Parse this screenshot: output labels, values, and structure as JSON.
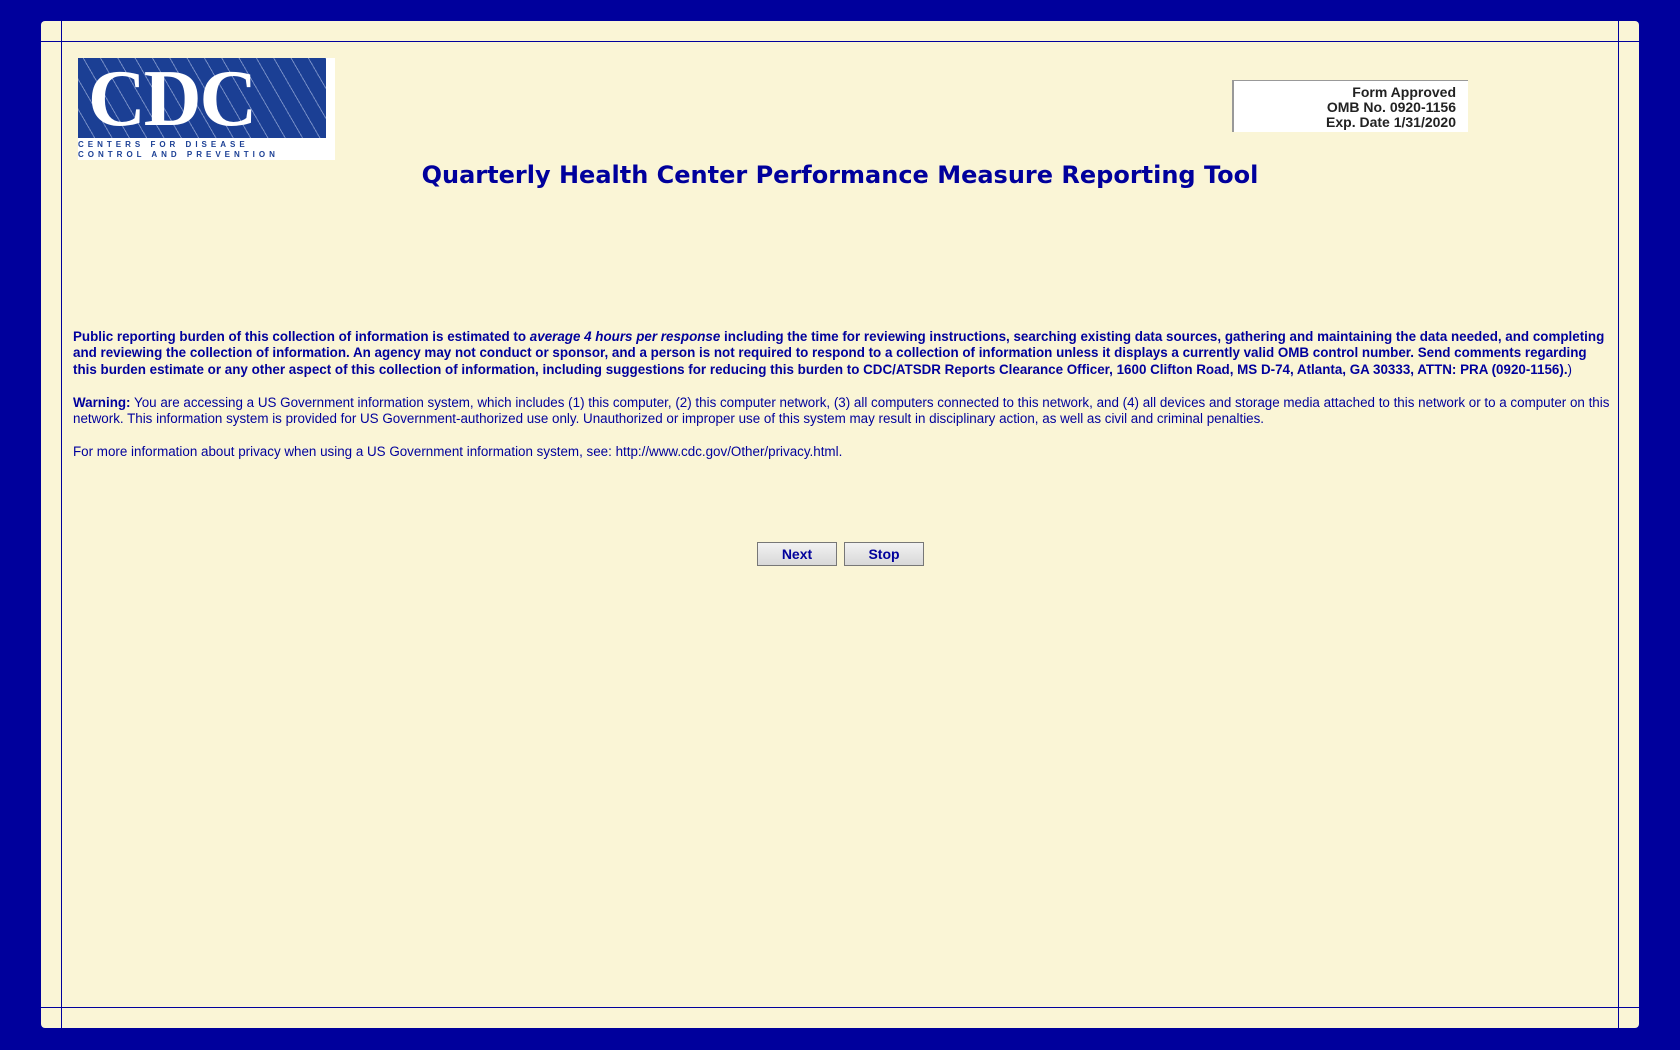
{
  "logo": {
    "text": "CDC",
    "subtitle_line1": "CENTERS FOR DISEASE",
    "subtitle_line2": "CONTROL AND PREVENTION"
  },
  "omb": {
    "line1": "Form Approved",
    "line2": "OMB No. 0920-1156",
    "line3": "Exp. Date 1/31/2020"
  },
  "title": "Quarterly Health Center Performance Measure Reporting Tool",
  "burden": {
    "before": "Public reporting burden of this collection of information is estimated to ",
    "emphasis": "average 4 hours per response",
    "after": " including the time for reviewing instructions, searching existing data sources, gathering and maintaining the data needed, and completing and reviewing the collection of information. An agency may not conduct or sponsor, and a person is not required to respond to a collection of information unless it displays a currently valid OMB control number. Send comments regarding this burden estimate or any other aspect of this collection of information, including suggestions for reducing this burden to CDC/ATSDR Reports Clearance Officer, 1600 Clifton Road, MS D-74, Atlanta, GA 30333, ATTN: PRA (0920-1156).",
    "closing": ")"
  },
  "warning": {
    "label": "Warning:",
    "text": " You are accessing a US Government information system, which includes (1) this computer, (2) this computer network, (3) all computers connected to this network, and (4) all devices and storage media attached to this network or to a computer on this network. This information system is provided for US Government-authorized use only. Unauthorized or improper use of this system may result in disciplinary action, as well as civil and criminal penalties."
  },
  "privacy": {
    "text": "For more information about privacy when using a US Government information system, see: ",
    "url": "http://www.cdc.gov/Other/privacy.html",
    "end": "."
  },
  "buttons": {
    "next": "Next",
    "stop": "Stop"
  },
  "colors": {
    "frame": "#00009c",
    "background": "#faf5d6",
    "text": "#00009c"
  }
}
